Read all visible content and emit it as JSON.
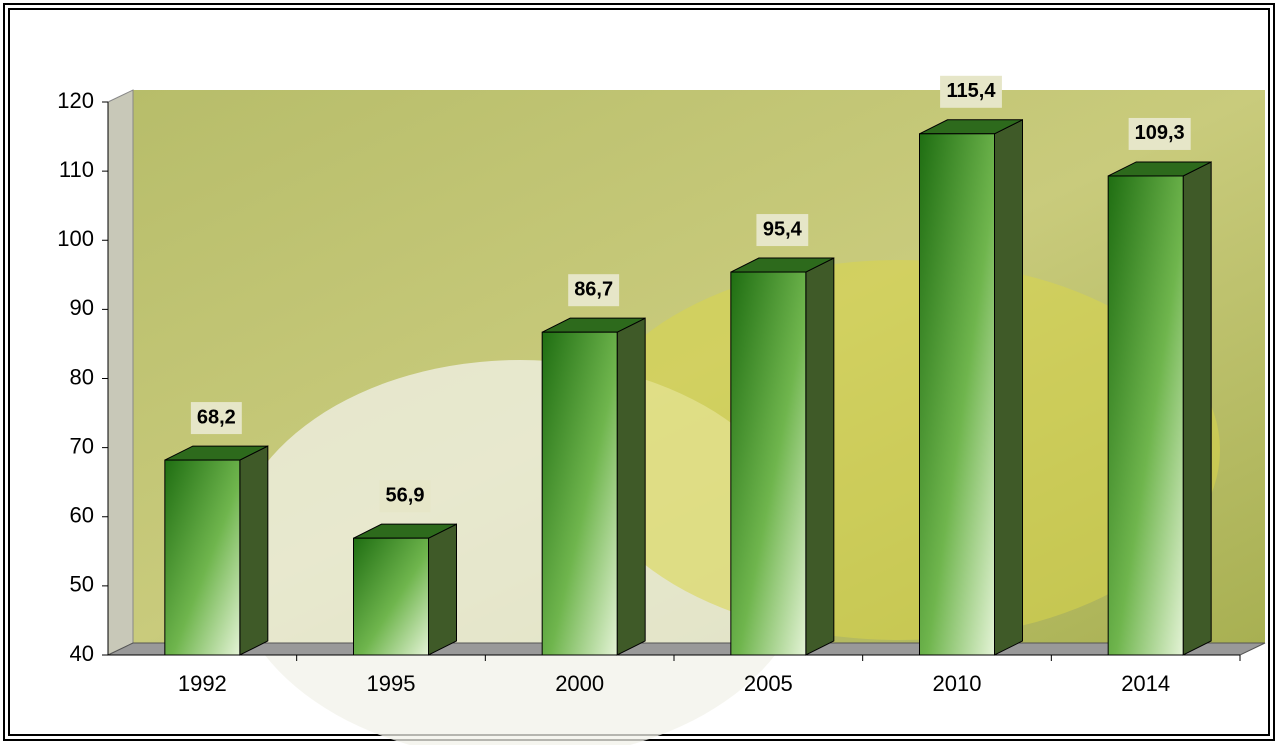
{
  "chart_data": {
    "type": "bar",
    "categories": [
      "1992",
      "1995",
      "2000",
      "2005",
      "2010",
      "2014"
    ],
    "values": [
      68.2,
      56.9,
      86.7,
      95.4,
      115.4,
      109.3
    ],
    "value_labels": [
      "68,2",
      "56,9",
      "86,7",
      "95,4",
      "115,4",
      "109,3"
    ],
    "color": "#2e8b1e",
    "ylim": [
      40,
      120
    ],
    "yticks": [
      40,
      50,
      60,
      70,
      80,
      90,
      100,
      110,
      120
    ],
    "grid": false
  }
}
